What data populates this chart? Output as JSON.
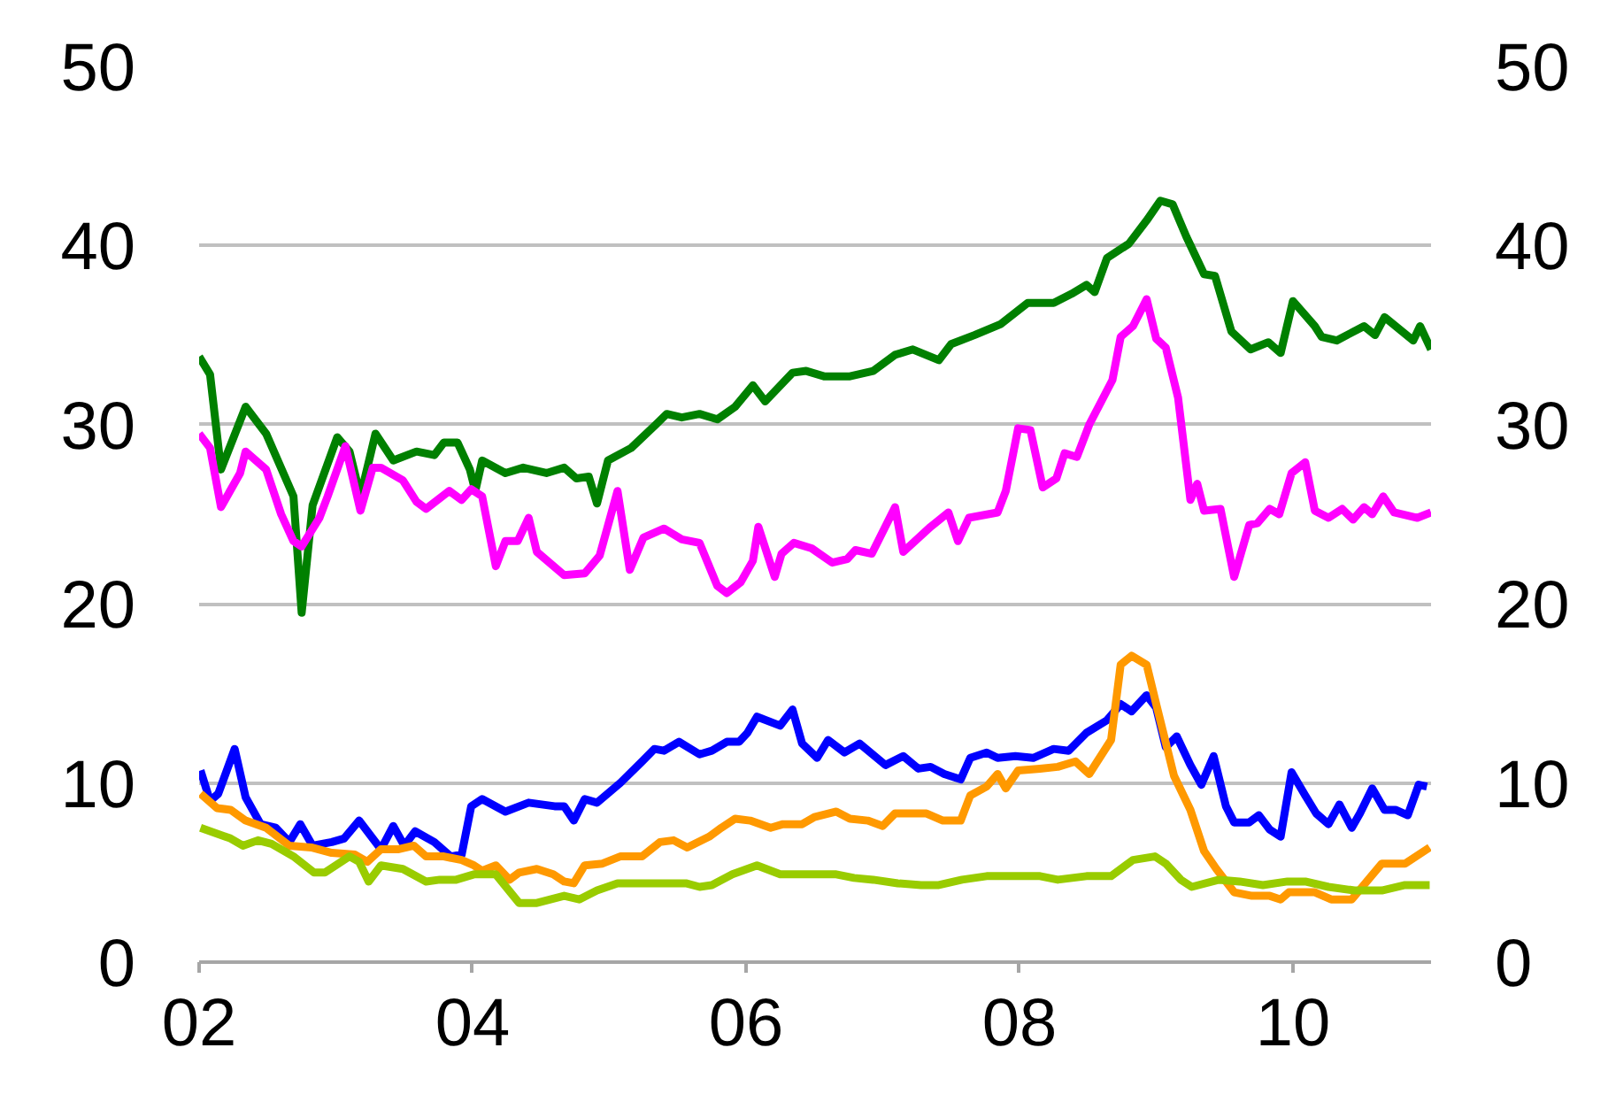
{
  "chart_data": {
    "type": "line",
    "xlim": [
      2002.0,
      2011.01
    ],
    "xticks": [
      {
        "value": 2002,
        "label": "02"
      },
      {
        "value": 2004,
        "label": "04"
      },
      {
        "value": 2006,
        "label": "06"
      },
      {
        "value": 2008,
        "label": "08"
      },
      {
        "value": 2010,
        "label": "10"
      }
    ],
    "ylim": [
      0,
      50
    ],
    "yticks": [
      0,
      10,
      20,
      30,
      40,
      50
    ],
    "y2lim": [
      0,
      50
    ],
    "y2ticks": [
      0,
      10,
      20,
      30,
      40,
      50
    ],
    "grid": "y",
    "marker": "none",
    "line_style": "solid",
    "series": [
      {
        "color": "#008000",
        "x": [
          2002.0,
          2002.08,
          2002.16,
          2002.34,
          2002.49,
          2002.69,
          2002.75,
          2002.83,
          2003.01,
          2003.1,
          2003.18,
          2003.29,
          2003.42,
          2003.59,
          2003.72,
          2003.79,
          2003.89,
          2003.98,
          2004.02,
          2004.07,
          2004.24,
          2004.37,
          2004.54,
          2004.67,
          2004.76,
          2004.85,
          2004.91,
          2004.99,
          2005.16,
          2005.34,
          2005.42,
          2005.53,
          2005.66,
          2005.79,
          2005.92,
          2006.05,
          2006.14,
          2006.34,
          2006.44,
          2006.57,
          2006.76,
          2006.93,
          2007.09,
          2007.22,
          2007.41,
          2007.5,
          2007.67,
          2007.86,
          2008.06,
          2008.25,
          2008.38,
          2008.49,
          2008.55,
          2008.64,
          2008.8,
          2008.93,
          2009.03,
          2009.12,
          2009.22,
          2009.35,
          2009.43,
          2009.55,
          2009.69,
          2009.82,
          2009.91,
          2010.0,
          2010.16,
          2010.21,
          2010.32,
          2010.52,
          2010.6,
          2010.67,
          2010.88,
          2010.93,
          2011.01
        ],
        "values": [
          33.8,
          32.8,
          27.5,
          31.0,
          29.5,
          26.0,
          19.5,
          25.5,
          29.3,
          28.5,
          26.0,
          29.5,
          28.0,
          28.5,
          28.3,
          29.0,
          29.0,
          27.5,
          26.3,
          28.0,
          27.3,
          27.6,
          27.3,
          27.6,
          27.0,
          27.1,
          25.6,
          28.0,
          28.7,
          30.0,
          30.6,
          30.4,
          30.6,
          30.3,
          31.0,
          32.2,
          31.3,
          32.9,
          33.0,
          32.7,
          32.7,
          33.0,
          33.9,
          34.2,
          33.6,
          34.5,
          35.0,
          35.6,
          36.8,
          36.8,
          37.3,
          37.8,
          37.4,
          39.3,
          40.1,
          41.4,
          42.5,
          42.3,
          40.5,
          38.4,
          38.3,
          35.2,
          34.2,
          34.6,
          34.0,
          36.9,
          35.5,
          34.9,
          34.7,
          35.5,
          35.0,
          36.0,
          34.7,
          35.5,
          34.2
        ]
      },
      {
        "color": "#ff00ff",
        "x": [
          2002.0,
          2002.08,
          2002.16,
          2002.3,
          2002.34,
          2002.49,
          2002.6,
          2002.69,
          2002.75,
          2002.88,
          2002.94,
          2003.07,
          2003.18,
          2003.27,
          2003.33,
          2003.49,
          2003.59,
          2003.66,
          2003.83,
          2003.92,
          2003.99,
          2004.07,
          2004.17,
          2004.24,
          2004.33,
          2004.41,
          2004.47,
          2004.67,
          2004.82,
          2004.93,
          2005.06,
          2005.15,
          2005.25,
          2005.4,
          2005.53,
          2005.66,
          2005.79,
          2005.86,
          2005.96,
          2006.05,
          2006.09,
          2006.21,
          2006.26,
          2006.35,
          2006.48,
          2006.63,
          2006.74,
          2006.8,
          2006.92,
          2007.09,
          2007.15,
          2007.35,
          2007.48,
          2007.55,
          2007.63,
          2007.84,
          2007.9,
          2007.99,
          2008.08,
          2008.17,
          2008.27,
          2008.33,
          2008.42,
          2008.51,
          2008.68,
          2008.74,
          2008.83,
          2008.93,
          2009.0,
          2009.07,
          2009.16,
          2009.25,
          2009.3,
          2009.35,
          2009.47,
          2009.57,
          2009.68,
          2009.74,
          2009.83,
          2009.9,
          2009.99,
          2010.09,
          2010.16,
          2010.26,
          2010.36,
          2010.44,
          2010.52,
          2010.58,
          2010.66,
          2010.74,
          2010.91,
          2011.01
        ],
        "values": [
          29.5,
          28.7,
          25.4,
          27.3,
          28.5,
          27.5,
          25.0,
          23.5,
          23.2,
          24.8,
          26.0,
          28.8,
          25.2,
          27.6,
          27.6,
          26.9,
          25.7,
          25.3,
          26.3,
          25.8,
          26.4,
          26.0,
          22.1,
          23.5,
          23.5,
          24.8,
          22.9,
          21.6,
          21.7,
          22.7,
          26.3,
          21.9,
          23.7,
          24.2,
          23.6,
          23.4,
          21.0,
          20.6,
          21.2,
          22.4,
          24.3,
          21.5,
          22.8,
          23.4,
          23.1,
          22.3,
          22.5,
          23.0,
          22.8,
          25.4,
          22.9,
          24.3,
          25.1,
          23.5,
          24.8,
          25.1,
          26.3,
          29.8,
          29.7,
          26.5,
          27.0,
          28.4,
          28.2,
          30.0,
          32.5,
          34.9,
          35.5,
          37.0,
          34.8,
          34.3,
          31.5,
          25.8,
          26.7,
          25.2,
          25.3,
          21.5,
          24.4,
          24.5,
          25.3,
          25.0,
          27.3,
          27.9,
          25.2,
          24.8,
          25.3,
          24.7,
          25.4,
          25.0,
          26.0,
          25.1,
          24.8,
          25.1
        ]
      },
      {
        "color": "#0000ff",
        "x": [
          2002.01,
          2002.08,
          2002.14,
          2002.26,
          2002.34,
          2002.45,
          2002.56,
          2002.66,
          2002.74,
          2002.83,
          2002.97,
          2003.06,
          2003.17,
          2003.33,
          2003.42,
          2003.5,
          2003.58,
          2003.72,
          2003.84,
          2003.92,
          2003.99,
          2004.07,
          2004.24,
          2004.41,
          2004.6,
          2004.67,
          2004.74,
          2004.82,
          2004.91,
          2005.08,
          2005.24,
          2005.33,
          2005.4,
          2005.51,
          2005.66,
          2005.75,
          2005.86,
          2005.95,
          2006.01,
          2006.08,
          2006.25,
          2006.34,
          2006.41,
          2006.52,
          2006.6,
          2006.72,
          2006.83,
          2007.02,
          2007.15,
          2007.26,
          2007.35,
          2007.45,
          2007.57,
          2007.64,
          2007.76,
          2007.84,
          2007.97,
          2008.1,
          2008.25,
          2008.36,
          2008.49,
          2008.64,
          2008.74,
          2008.82,
          2008.93,
          2009.0,
          2009.07,
          2009.15,
          2009.25,
          2009.33,
          2009.42,
          2009.51,
          2009.57,
          2009.68,
          2009.75,
          2009.83,
          2009.91,
          2009.99,
          2010.09,
          2010.17,
          2010.26,
          2010.34,
          2010.43,
          2010.49,
          2010.58,
          2010.67,
          2010.75,
          2010.84,
          2010.92,
          2010.98
        ],
        "values": [
          10.7,
          9.0,
          9.4,
          11.9,
          9.2,
          7.7,
          7.5,
          6.7,
          7.7,
          6.5,
          6.7,
          6.9,
          7.9,
          6.3,
          7.6,
          6.5,
          7.3,
          6.7,
          5.9,
          6.0,
          8.7,
          9.1,
          8.4,
          8.9,
          8.7,
          8.7,
          7.9,
          9.1,
          8.9,
          10.0,
          11.2,
          11.9,
          11.8,
          12.3,
          11.6,
          11.8,
          12.3,
          12.3,
          12.8,
          13.7,
          13.2,
          14.1,
          12.2,
          11.4,
          12.4,
          11.7,
          12.2,
          11.0,
          11.5,
          10.8,
          10.9,
          10.5,
          10.2,
          11.4,
          11.7,
          11.4,
          11.5,
          11.4,
          11.9,
          11.8,
          12.8,
          13.5,
          14.4,
          14.0,
          14.9,
          14.2,
          12.0,
          12.6,
          11.0,
          9.9,
          11.5,
          8.7,
          7.8,
          7.8,
          8.2,
          7.4,
          7.0,
          10.6,
          9.3,
          8.3,
          7.7,
          8.8,
          7.5,
          8.3,
          9.7,
          8.5,
          8.5,
          8.2,
          9.9,
          9.8
        ]
      },
      {
        "color": "#ff9900",
        "x": [
          2002.01,
          2002.13,
          2002.23,
          2002.34,
          2002.49,
          2002.66,
          2002.82,
          2002.97,
          2003.14,
          2003.23,
          2003.33,
          2003.46,
          2003.57,
          2003.66,
          2003.79,
          2003.92,
          2004.01,
          2004.07,
          2004.17,
          2004.27,
          2004.34,
          2004.47,
          2004.59,
          2004.67,
          2004.74,
          2004.82,
          2004.95,
          2005.08,
          2005.24,
          2005.37,
          2005.47,
          2005.57,
          2005.73,
          2005.82,
          2005.92,
          2006.03,
          2006.18,
          2006.27,
          2006.41,
          2006.5,
          2006.66,
          2006.76,
          2006.89,
          2007.0,
          2007.09,
          2007.32,
          2007.44,
          2007.57,
          2007.64,
          2007.76,
          2007.84,
          2007.9,
          2007.99,
          2008.15,
          2008.28,
          2008.41,
          2008.51,
          2008.67,
          2008.74,
          2008.82,
          2008.93,
          2009.0,
          2009.13,
          2009.25,
          2009.35,
          2009.44,
          2009.57,
          2009.7,
          2009.83,
          2009.91,
          2009.97,
          2010.16,
          2010.28,
          2010.43,
          2010.54,
          2010.65,
          2010.82,
          2011.0
        ],
        "values": [
          9.4,
          8.6,
          8.5,
          7.9,
          7.5,
          6.5,
          6.4,
          6.1,
          6.0,
          5.6,
          6.3,
          6.3,
          6.5,
          5.9,
          5.9,
          5.7,
          5.4,
          5.1,
          5.4,
          4.6,
          5.0,
          5.2,
          4.9,
          4.5,
          4.4,
          5.4,
          5.5,
          5.9,
          5.9,
          6.7,
          6.8,
          6.4,
          7.0,
          7.5,
          8.0,
          7.9,
          7.5,
          7.7,
          7.7,
          8.1,
          8.4,
          8.0,
          7.9,
          7.6,
          8.3,
          8.3,
          7.9,
          7.9,
          9.3,
          9.8,
          10.5,
          9.7,
          10.7,
          10.8,
          10.9,
          11.2,
          10.5,
          12.4,
          16.6,
          17.1,
          16.6,
          14.4,
          10.4,
          8.5,
          6.2,
          5.2,
          3.9,
          3.7,
          3.7,
          3.5,
          3.9,
          3.9,
          3.5,
          3.5,
          4.5,
          5.5,
          5.5,
          6.4
        ]
      },
      {
        "color": "#99cc00",
        "x": [
          2002.01,
          2002.23,
          2002.32,
          2002.43,
          2002.53,
          2002.69,
          2002.84,
          2002.92,
          2003.1,
          2003.17,
          2003.24,
          2003.33,
          2003.49,
          2003.66,
          2003.76,
          2003.88,
          2004.01,
          2004.17,
          2004.34,
          2004.47,
          2004.67,
          2004.78,
          2004.91,
          2005.06,
          2005.56,
          2005.66,
          2005.75,
          2005.9,
          2006.08,
          2006.25,
          2006.66,
          2006.79,
          2006.93,
          2007.11,
          2007.28,
          2007.41,
          2007.58,
          2007.76,
          2008.15,
          2008.28,
          2008.49,
          2008.67,
          2008.83,
          2008.99,
          2009.07,
          2009.18,
          2009.26,
          2009.46,
          2009.61,
          2009.78,
          2009.96,
          2010.09,
          2010.26,
          2010.45,
          2010.65,
          2010.82,
          2011.0
        ],
        "values": [
          7.5,
          6.9,
          6.5,
          6.8,
          6.6,
          5.9,
          5.0,
          5.0,
          5.9,
          5.6,
          4.5,
          5.4,
          5.2,
          4.5,
          4.6,
          4.6,
          4.9,
          4.9,
          3.3,
          3.3,
          3.7,
          3.5,
          4.0,
          4.4,
          4.4,
          4.2,
          4.3,
          4.9,
          5.4,
          4.9,
          4.9,
          4.7,
          4.6,
          4.4,
          4.3,
          4.3,
          4.6,
          4.8,
          4.8,
          4.6,
          4.8,
          4.8,
          5.7,
          5.9,
          5.5,
          4.6,
          4.2,
          4.6,
          4.5,
          4.3,
          4.5,
          4.5,
          4.2,
          4.0,
          4.0,
          4.3,
          4.3
        ]
      }
    ]
  }
}
